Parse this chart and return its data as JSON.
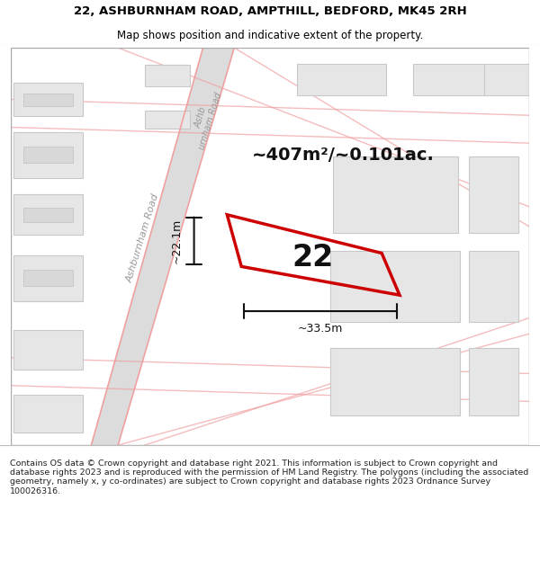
{
  "title_line1": "22, ASHBURNHAM ROAD, AMPTHILL, BEDFORD, MK45 2RH",
  "title_line2": "Map shows position and indicative extent of the property.",
  "footer_text": "Contains OS data © Crown copyright and database right 2021. This information is subject to Crown copyright and database rights 2023 and is reproduced with the permission of HM Land Registry. The polygons (including the associated geometry, namely x, y co-ordinates) are subject to Crown copyright and database rights 2023 Ordnance Survey 100026316.",
  "area_label": "~407m²/~0.101ac.",
  "number_label": "22",
  "dim_width": "~33.5m",
  "dim_height": "~22.1m",
  "map_bg": "#f2f2f2",
  "road_fill": "#e0e0e0",
  "road_line_color": "#f0a0a0",
  "building_fill": "#e0e0e0",
  "building_edge": "#c8c8c8",
  "property_color": "#cc0000",
  "dim_color": "#111111",
  "label_color": "#111111",
  "road_label_color": "#999999",
  "title_fs": 9.5,
  "subtitle_fs": 8.5,
  "area_fs": 14,
  "number_fs": 24,
  "dim_fs": 9,
  "footer_fs": 6.8,
  "road_label_fs": 8
}
